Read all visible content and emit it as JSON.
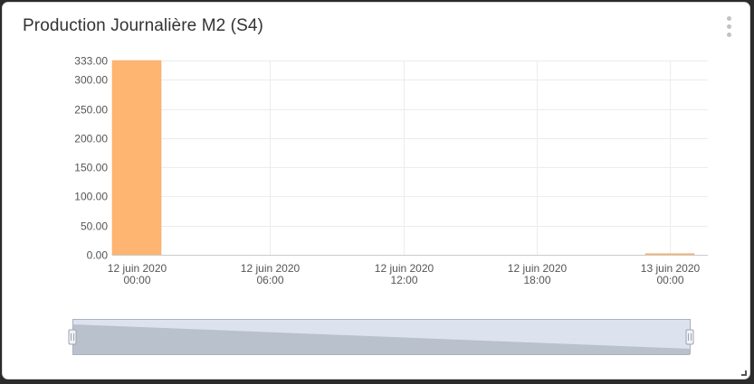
{
  "widget": {
    "title": "Production Journalière M2 (S4)",
    "menu_icon": "vertical-ellipsis-icon"
  },
  "colors": {
    "bar": "#ffb572",
    "bar_stroke": "#f5a55c",
    "grid": "#ececec",
    "axis": "#cccccc",
    "navigator_fill": "#dde3ee",
    "navigator_series": "#b9c1cc",
    "navigator_outline": "#a8b2c2"
  },
  "chart_data": {
    "type": "bar",
    "title": "Production Journalière M2 (S4)",
    "xlabel": "",
    "ylabel": "",
    "ylim": [
      0,
      333
    ],
    "y_ticks": [
      "333.00",
      "300.00",
      "250.00",
      "200.00",
      "150.00",
      "100.00",
      "50.00",
      "0.00"
    ],
    "y_tick_values": [
      333,
      300,
      250,
      200,
      150,
      100,
      50,
      0
    ],
    "x_ticks": [
      {
        "date": "12 juin 2020",
        "time": "00:00",
        "hour": 0
      },
      {
        "date": "12 juin 2020",
        "time": "06:00",
        "hour": 6
      },
      {
        "date": "12 juin 2020",
        "time": "12:00",
        "hour": 12
      },
      {
        "date": "12 juin 2020",
        "time": "18:00",
        "hour": 18
      },
      {
        "date": "13 juin 2020",
        "time": "00:00",
        "hour": 24
      }
    ],
    "bars": [
      {
        "start_hour": -1.1,
        "end_hour": 1.1,
        "value": 333
      },
      {
        "start_hour": 22.9,
        "end_hour": 25.1,
        "value": 2
      }
    ],
    "grid": true,
    "legend": "none"
  }
}
